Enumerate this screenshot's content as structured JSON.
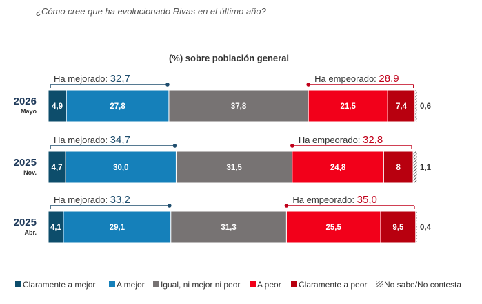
{
  "chart_data": {
    "type": "bar",
    "orientation": "horizontal-stacked",
    "question": "¿Cómo cree que ha evolucionado Rivas en el último año?",
    "title": "(%) sobre población general",
    "categories": [
      {
        "year": "2026",
        "month": "Mayo"
      },
      {
        "year": "2025",
        "month": "Nov."
      },
      {
        "year": "2025",
        "month": "Abr."
      }
    ],
    "series": [
      {
        "name": "Claramente a mejor",
        "color": "#0d4d6b",
        "values": [
          4.9,
          4.7,
          4.1
        ],
        "labels": [
          "4,9",
          "4,7",
          "4,1"
        ]
      },
      {
        "name": "A mejor",
        "color": "#1580ba",
        "values": [
          27.8,
          30.0,
          29.1
        ],
        "labels": [
          "27,8",
          "30,0",
          "29,1"
        ]
      },
      {
        "name": "Igual, ni mejor ni peor",
        "color": "#777373",
        "values": [
          37.8,
          31.5,
          31.3
        ],
        "labels": [
          "37,8",
          "31,5",
          "31,3"
        ]
      },
      {
        "name": "A peor",
        "color": "#f2001a",
        "values": [
          21.5,
          24.8,
          25.5
        ],
        "labels": [
          "21,5",
          "24,8",
          "25,5"
        ]
      },
      {
        "name": "Claramente a peor",
        "color": "#b8000f",
        "values": [
          7.4,
          8.0,
          9.5
        ],
        "labels": [
          "7,4",
          "8",
          "9,5"
        ]
      },
      {
        "name": "No sabe/No contesta",
        "color": "hatched",
        "values": [
          0.6,
          1.1,
          0.4
        ],
        "labels": [
          "0,6",
          "1,1",
          "0,4"
        ]
      }
    ],
    "summary": {
      "improved_label": "Ha mejorado: ",
      "improved_values": [
        "32,7",
        "34,7",
        "33,2"
      ],
      "worsened_label": "Ha empeorado: ",
      "worsened_values": [
        "28,9",
        "32,8",
        "35,0"
      ]
    },
    "colors": {
      "improved": "#1f4e6e",
      "worsened": "#c0001a"
    },
    "legend_position": "bottom"
  }
}
